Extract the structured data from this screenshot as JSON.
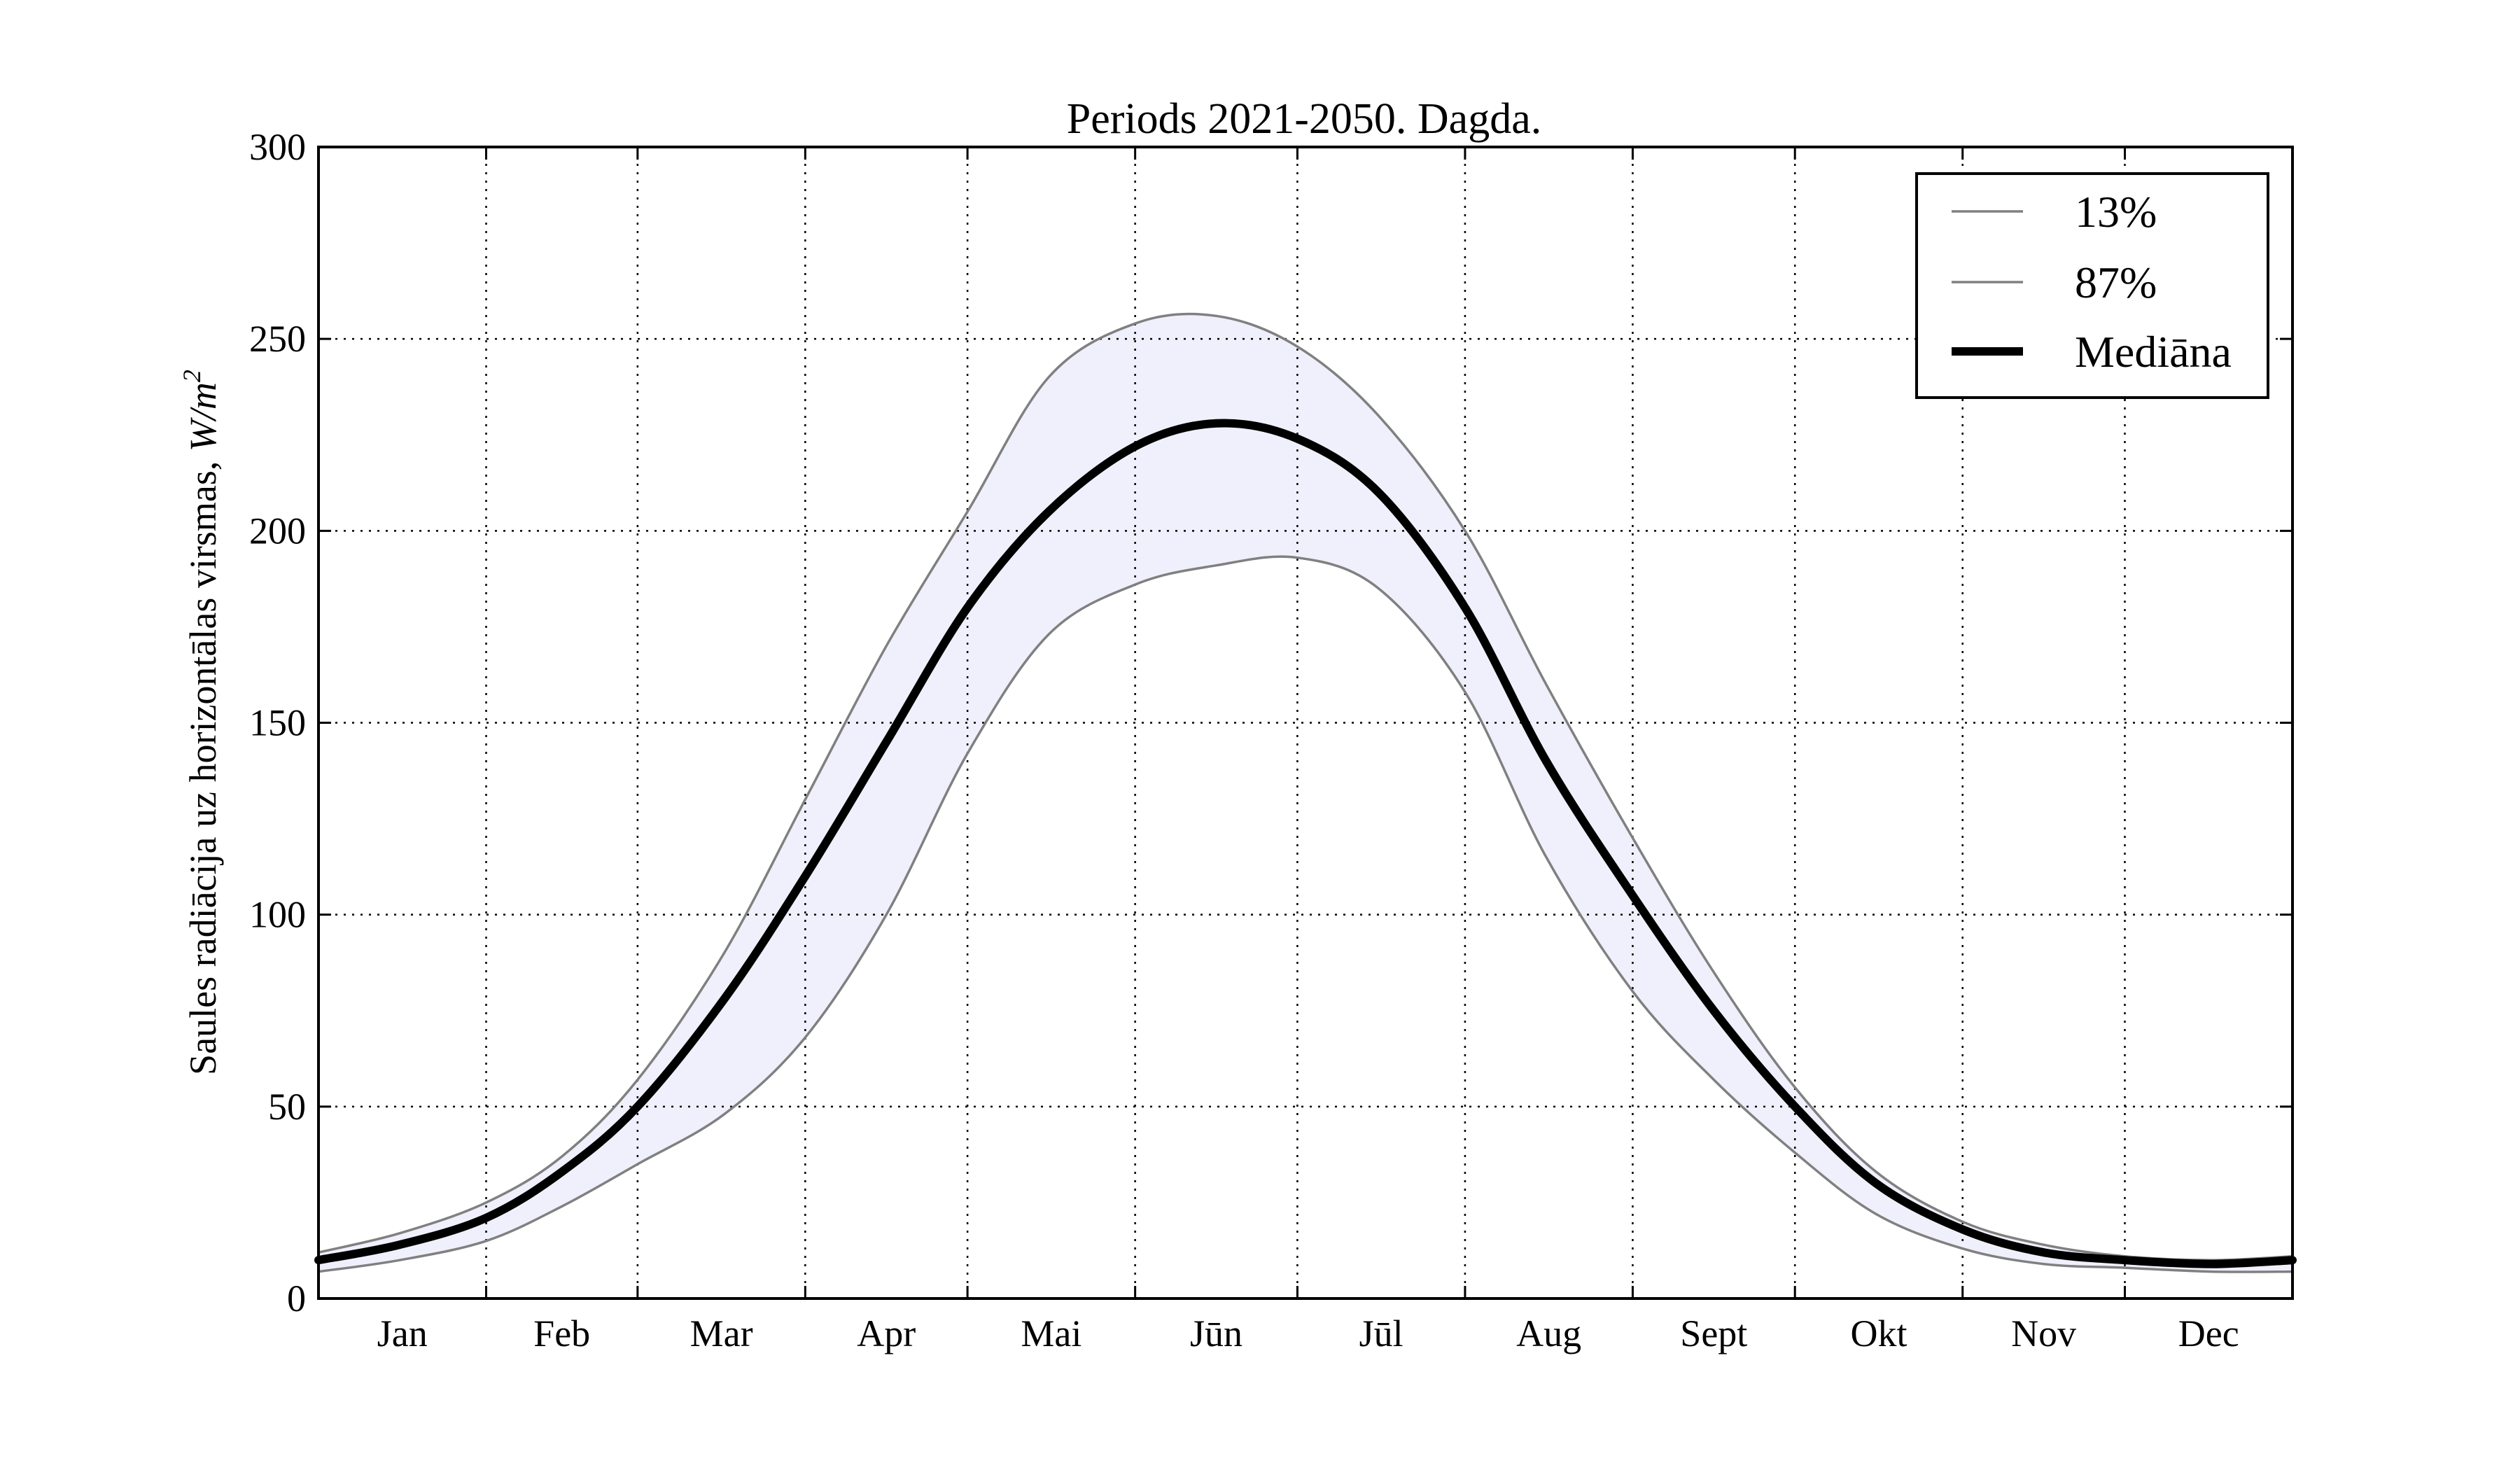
{
  "chart_data": {
    "type": "line",
    "title": "Periods 2021-2050. Dagda.",
    "xlabel": "",
    "ylabel": "Saules radiācija uz horizontālas virsmas,",
    "ylabel_unit": "W/m",
    "ylabel_unit_exp": "2",
    "ylim": [
      0,
      300
    ],
    "xlim": [
      0,
      365
    ],
    "yticks": [
      0,
      50,
      100,
      150,
      200,
      250,
      300
    ],
    "months": [
      "Jan",
      "Feb",
      "Mar",
      "Apr",
      "Mai",
      "Jūn",
      "Jūl",
      "Aug",
      "Sept",
      "Okt",
      "Nov",
      "Dec"
    ],
    "month_ticks": [
      0,
      31,
      59,
      90,
      120,
      151,
      181,
      212,
      243,
      273,
      304,
      334,
      365
    ],
    "grid": true,
    "legend_position": "top-right",
    "series": [
      {
        "name": "13%",
        "color": "#808080",
        "x": [
          0,
          15,
          31,
          45,
          59,
          75,
          90,
          105,
          120,
          135,
          151,
          166,
          181,
          196,
          212,
          227,
          243,
          258,
          273,
          288,
          304,
          319,
          334,
          350,
          365
        ],
        "values": [
          7,
          10,
          15,
          24,
          35,
          48,
          68,
          100,
          142,
          173,
          186,
          191,
          193,
          185,
          158,
          115,
          80,
          57,
          38,
          22,
          13,
          9,
          8,
          7,
          7
        ]
      },
      {
        "name": "87%",
        "color": "#808080",
        "x": [
          0,
          15,
          31,
          45,
          59,
          75,
          90,
          105,
          120,
          135,
          151,
          166,
          181,
          196,
          212,
          227,
          243,
          258,
          273,
          288,
          304,
          319,
          334,
          350,
          365
        ],
        "values": [
          12,
          17,
          25,
          37,
          57,
          90,
          130,
          170,
          205,
          240,
          254,
          256,
          248,
          230,
          200,
          160,
          120,
          85,
          55,
          33,
          20,
          14,
          11,
          10,
          11
        ]
      },
      {
        "name": "Mediāna",
        "color": "#000000",
        "x": [
          0,
          15,
          31,
          45,
          59,
          75,
          90,
          105,
          120,
          135,
          151,
          166,
          181,
          196,
          212,
          227,
          243,
          258,
          273,
          288,
          304,
          319,
          334,
          350,
          365
        ],
        "values": [
          10,
          14,
          21,
          33,
          50,
          78,
          110,
          145,
          180,
          205,
          222,
          228,
          224,
          210,
          180,
          140,
          105,
          75,
          50,
          30,
          18,
          12,
          10,
          9,
          10
        ]
      }
    ],
    "band": {
      "lower": "13%",
      "upper": "87%",
      "color": "#f0f0fc"
    }
  }
}
